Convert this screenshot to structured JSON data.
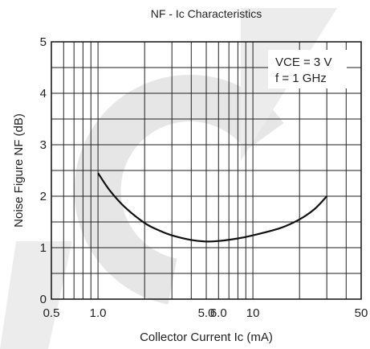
{
  "chart_data": {
    "type": "line",
    "title": "NF - Ic Characteristics",
    "xlabel": "Collector Current Ic (mA)",
    "ylabel": "Noise Figure NF (dB)",
    "x_scale": "log",
    "xlim": [
      0.5,
      50
    ],
    "ylim": [
      0,
      5
    ],
    "x_tick_labels": [
      {
        "value": 0.5,
        "label": "0.5"
      },
      {
        "value": 1.0,
        "label": "1.0"
      },
      {
        "value": 5.0,
        "label": "5.0"
      },
      {
        "value": 6.0,
        "label": "6.0"
      },
      {
        "value": 10,
        "label": "10"
      },
      {
        "value": 50,
        "label": "50"
      }
    ],
    "y_tick_labels": [
      {
        "value": 0,
        "label": "0"
      },
      {
        "value": 1,
        "label": "1"
      },
      {
        "value": 2,
        "label": "2"
      },
      {
        "value": 3,
        "label": "3"
      },
      {
        "value": 4,
        "label": "4"
      },
      {
        "value": 5,
        "label": "5"
      }
    ],
    "x_grid_lines": [
      0.6,
      0.7,
      0.8,
      0.9,
      1,
      2,
      3,
      4,
      5,
      6,
      7,
      8,
      9,
      10,
      20,
      30,
      40
    ],
    "y_grid_lines": [
      0.5,
      1,
      1.5,
      2,
      2.5,
      3,
      3.5,
      4,
      4.5
    ],
    "grid": true,
    "annotation_line1": "VCE = 3 V",
    "annotation_line2": "f = 1 GHz",
    "series": [
      {
        "x": [
          1.0,
          1.2,
          1.5,
          2.0,
          2.5,
          3.0,
          4.0,
          5.0,
          6.0,
          8.0,
          10,
          15,
          20,
          25,
          30
        ],
        "y": [
          2.45,
          2.1,
          1.78,
          1.48,
          1.33,
          1.24,
          1.15,
          1.12,
          1.13,
          1.18,
          1.24,
          1.38,
          1.55,
          1.75,
          2.0
        ]
      }
    ],
    "colors": {
      "line": "#111111",
      "grid": "#222222",
      "watermark": "#d6d6d6"
    }
  }
}
